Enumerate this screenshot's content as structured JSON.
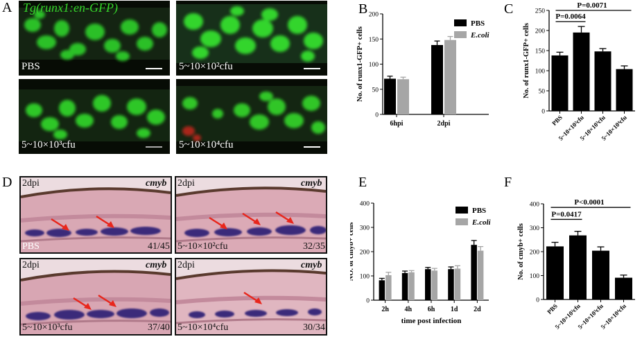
{
  "panels": {
    "A": "A",
    "B": "B",
    "C": "C",
    "D": "D",
    "E": "E",
    "F": "F"
  },
  "panelA": {
    "title": "Tg(runx1:en-GFP)",
    "images": [
      {
        "caption": "PBS"
      },
      {
        "caption": "5~10×10²cfu"
      },
      {
        "caption": "5~10×10³cfu"
      },
      {
        "caption": "5~10×10⁴cfu"
      }
    ]
  },
  "panelD": {
    "images": [
      {
        "stage": "2dpi",
        "gene": "cmyb",
        "caption": "PBS",
        "count": "41/45"
      },
      {
        "stage": "2dpi",
        "gene": "cmyb",
        "caption": "5~10×10²cfu",
        "count": "32/35"
      },
      {
        "stage": "2dpi",
        "gene": "cmyb",
        "caption": "5~10×10³cfu",
        "count": "37/40"
      },
      {
        "stage": "2dpi",
        "gene": "cmyb",
        "caption": "5~10×10⁴cfu",
        "count": "30/34"
      }
    ]
  },
  "colors": {
    "pbs": "#000000",
    "ecoli": "#a6a6a6",
    "gfp": "#35d62a",
    "arrow": "#e8261c"
  },
  "chart_data": [
    {
      "id": "B",
      "type": "bar",
      "ylabel": "No. of runx1-GFP+ cells",
      "ylim": [
        0,
        200
      ],
      "yticks": [
        0,
        50,
        100,
        150,
        200
      ],
      "categories": [
        "6hpi",
        "2dpi"
      ],
      "legend": [
        "PBS",
        "E.coli"
      ],
      "series": [
        {
          "name": "PBS",
          "values": [
            71,
            138
          ],
          "errors": [
            5,
            8
          ]
        },
        {
          "name": "E.coli",
          "values": [
            70,
            148
          ],
          "errors": [
            4,
            7
          ]
        }
      ]
    },
    {
      "id": "C",
      "type": "bar",
      "ylabel": "No. of runx1-GFP+ cells",
      "ylim": [
        0,
        250
      ],
      "yticks": [
        0,
        50,
        100,
        150,
        200,
        250
      ],
      "categories": [
        "PBS",
        "5~10×10²cfu",
        "5~10×10³cfu",
        "5~10×10⁴cfu"
      ],
      "series": [
        {
          "values": [
            138,
            195,
            148,
            104
          ],
          "errors": [
            8,
            15,
            7,
            8
          ]
        }
      ],
      "annotations": [
        "P=0.0064",
        "P=0.0071"
      ]
    },
    {
      "id": "E",
      "type": "bar",
      "ylabel": "NO. of cmyb+ cells",
      "xlabel": "time post infection",
      "ylim": [
        0,
        400
      ],
      "yticks": [
        0,
        100,
        200,
        300,
        400
      ],
      "categories": [
        "2h",
        "4h",
        "6h",
        "1d",
        "2d"
      ],
      "legend": [
        "PBS",
        "E.coli"
      ],
      "series": [
        {
          "name": "PBS",
          "values": [
            82,
            112,
            128,
            128,
            228
          ],
          "errors": [
            8,
            8,
            7,
            9,
            18
          ]
        },
        {
          "name": "E.coli",
          "values": [
            103,
            115,
            122,
            130,
            204
          ],
          "errors": [
            12,
            7,
            9,
            12,
            17
          ]
        }
      ]
    },
    {
      "id": "F",
      "type": "bar",
      "ylabel": "No. of cmyb+ cells",
      "ylim": [
        0,
        400
      ],
      "yticks": [
        0,
        100,
        200,
        300,
        400
      ],
      "categories": [
        "PBS",
        "5~10×10²cfu",
        "5~10×10³cfu",
        "5~10×10⁴cfu"
      ],
      "series": [
        {
          "values": [
            222,
            268,
            204,
            91
          ],
          "errors": [
            17,
            17,
            16,
            11
          ]
        }
      ],
      "annotations": [
        "P=0.0417",
        "P<0.0001"
      ]
    }
  ]
}
